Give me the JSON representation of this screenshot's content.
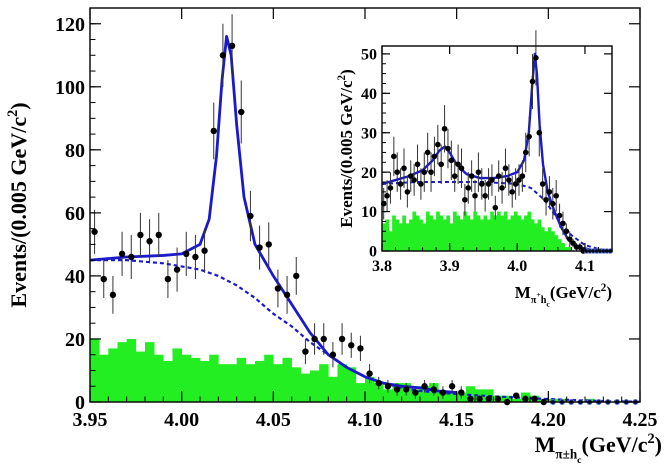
{
  "chart_data": [
    {
      "id": "main",
      "type": "scatter",
      "xlabel": "M",
      "xlabel_sub": "π±h",
      "xlabel_subsub": "c",
      "xlabel_unit": "(GeV/c",
      "xlabel_unit_sup": "2",
      "xlabel_unit_end": ")",
      "ylabel": "Events/(0.005 GeV/c",
      "ylabel_sup": "2",
      "ylabel_end": ")",
      "xlim": [
        3.95,
        4.25
      ],
      "ylim": [
        0,
        125
      ],
      "xticks": [
        3.95,
        4.0,
        4.05,
        4.1,
        4.15,
        4.2,
        4.25
      ],
      "xtick_labels": [
        "3.95",
        "4.00",
        "4.05",
        "4.10",
        "4.15",
        "4.20",
        "4.25"
      ],
      "yticks": [
        0,
        20,
        40,
        60,
        80,
        100,
        120
      ],
      "ytick_labels": [
        "0",
        "20",
        "40",
        "60",
        "80",
        "100",
        "120"
      ],
      "colors": {
        "data": "#000000",
        "fit": "#1a1acc",
        "background": "#1a1acc",
        "histogram": "#22ee22"
      },
      "data_points": [
        [
          3.9525,
          54,
          7
        ],
        [
          3.9575,
          39,
          6
        ],
        [
          3.9625,
          34,
          6
        ],
        [
          3.9675,
          47,
          7
        ],
        [
          3.9725,
          46,
          7
        ],
        [
          3.9775,
          53,
          7
        ],
        [
          3.9825,
          51,
          7
        ],
        [
          3.9875,
          53,
          7
        ],
        [
          3.9925,
          39,
          6
        ],
        [
          3.9975,
          42,
          7
        ],
        [
          4.0025,
          47,
          7
        ],
        [
          4.0075,
          46,
          7
        ],
        [
          4.0125,
          48,
          7
        ],
        [
          4.0175,
          86,
          9
        ],
        [
          4.0225,
          110,
          10
        ],
        [
          4.0275,
          113,
          10
        ],
        [
          4.0325,
          92,
          10
        ],
        [
          4.0375,
          59,
          8
        ],
        [
          4.0425,
          49,
          7
        ],
        [
          4.0475,
          50,
          7
        ],
        [
          4.0525,
          36,
          6
        ],
        [
          4.0575,
          34,
          6
        ],
        [
          4.0625,
          40,
          6
        ],
        [
          4.0675,
          16,
          4
        ],
        [
          4.0725,
          20,
          5
        ],
        [
          4.0775,
          20,
          5
        ],
        [
          4.0825,
          15,
          4
        ],
        [
          4.0875,
          20,
          5
        ],
        [
          4.0925,
          18,
          4
        ],
        [
          4.0975,
          17,
          4
        ],
        [
          4.1025,
          9,
          3
        ],
        [
          4.1075,
          6,
          2
        ],
        [
          4.1125,
          5,
          2
        ],
        [
          4.1175,
          4,
          2
        ],
        [
          4.1225,
          4,
          2
        ],
        [
          4.1275,
          3,
          2
        ],
        [
          4.1325,
          5,
          2
        ],
        [
          4.1375,
          4,
          2
        ],
        [
          4.1425,
          3,
          2
        ],
        [
          4.1475,
          5,
          2
        ],
        [
          4.1525,
          3,
          2
        ],
        [
          4.1575,
          1,
          1
        ],
        [
          4.1625,
          1,
          1
        ],
        [
          4.1675,
          1,
          1
        ],
        [
          4.1725,
          1,
          1
        ],
        [
          4.1775,
          0,
          1
        ],
        [
          4.1825,
          2,
          1
        ],
        [
          4.1875,
          1,
          1
        ],
        [
          4.1925,
          1,
          1
        ],
        [
          4.1975,
          0,
          1
        ],
        [
          4.2025,
          0,
          0
        ],
        [
          4.2075,
          0,
          0
        ],
        [
          4.2125,
          0,
          0
        ],
        [
          4.2175,
          0,
          0
        ],
        [
          4.2225,
          0,
          0
        ],
        [
          4.2275,
          0,
          0
        ],
        [
          4.2325,
          0,
          0
        ],
        [
          4.2375,
          0,
          0
        ],
        [
          4.2425,
          0,
          0
        ],
        [
          4.2475,
          0,
          0
        ]
      ],
      "fit_curve": [
        [
          3.95,
          45
        ],
        [
          3.97,
          46
        ],
        [
          3.99,
          46.5
        ],
        [
          4.0,
          47
        ],
        [
          4.01,
          50
        ],
        [
          4.015,
          58
        ],
        [
          4.019,
          78
        ],
        [
          4.022,
          102
        ],
        [
          4.0245,
          116
        ],
        [
          4.027,
          110
        ],
        [
          4.03,
          88
        ],
        [
          4.034,
          65
        ],
        [
          4.04,
          50
        ],
        [
          4.05,
          40
        ],
        [
          4.06,
          31
        ],
        [
          4.07,
          22
        ],
        [
          4.08,
          15
        ],
        [
          4.09,
          11
        ],
        [
          4.1,
          8
        ],
        [
          4.11,
          6
        ],
        [
          4.12,
          5
        ],
        [
          4.13,
          4.5
        ],
        [
          4.14,
          3.5
        ],
        [
          4.15,
          3
        ]
      ],
      "background_curve": [
        [
          3.95,
          45
        ],
        [
          3.97,
          45
        ],
        [
          3.99,
          44
        ],
        [
          4.0,
          43
        ],
        [
          4.01,
          42
        ],
        [
          4.02,
          40
        ],
        [
          4.03,
          37
        ],
        [
          4.04,
          33
        ],
        [
          4.05,
          28
        ],
        [
          4.06,
          24
        ],
        [
          4.07,
          19
        ],
        [
          4.08,
          15
        ],
        [
          4.09,
          11
        ],
        [
          4.1,
          8
        ],
        [
          4.11,
          6
        ],
        [
          4.12,
          4.5
        ],
        [
          4.13,
          3.5
        ],
        [
          4.15,
          2.5
        ],
        [
          4.17,
          1.8
        ],
        [
          4.19,
          1.2
        ],
        [
          4.21,
          0.7
        ],
        [
          4.23,
          0.3
        ],
        [
          4.25,
          0.1
        ]
      ],
      "histogram": {
        "bin_width": 0.005,
        "start": 3.95,
        "values": [
          20,
          15,
          17,
          19,
          20,
          16,
          19,
          15,
          13,
          17,
          15,
          14,
          13,
          15,
          12,
          12,
          14,
          12,
          13,
          15,
          12,
          14,
          11,
          9,
          10,
          12,
          8,
          12,
          11,
          6,
          8,
          6,
          4,
          6,
          6,
          4,
          5,
          6,
          3,
          3,
          3,
          5,
          4,
          4,
          2,
          2,
          1,
          3,
          2,
          1,
          1,
          1,
          0,
          0,
          1,
          0,
          0,
          0,
          0,
          0
        ]
      }
    },
    {
      "id": "inset",
      "type": "scatter",
      "xlabel": "M",
      "xlabel_sub": "π",
      "xlabel_sub_sup": "+",
      "xlabel_subsub": "h",
      "xlabel_subsubsub": "c",
      "xlabel_unit": "(GeV/c",
      "xlabel_unit_sup": "2",
      "xlabel_unit_end": ")",
      "ylabel": "Events/(0.005 GeV/c",
      "ylabel_sup": "2",
      "ylabel_end": ")",
      "xlim": [
        3.8,
        4.14
      ],
      "ylim": [
        0,
        52
      ],
      "xticks": [
        3.8,
        3.9,
        4.0,
        4.1
      ],
      "xtick_labels": [
        "3.8",
        "3.9",
        "4.0",
        "4.1"
      ],
      "yticks": [
        0,
        10,
        20,
        30,
        40,
        50
      ],
      "ytick_labels": [
        "0",
        "10",
        "20",
        "30",
        "40",
        "50"
      ],
      "colors": {
        "data": "#000000",
        "fit": "#1a1acc",
        "background": "#1a1acc",
        "histogram": "#22ee22"
      },
      "data_points": [
        [
          3.8025,
          12,
          4
        ],
        [
          3.8075,
          14,
          4
        ],
        [
          3.8125,
          16,
          4
        ],
        [
          3.8175,
          24,
          5
        ],
        [
          3.8225,
          20,
          5
        ],
        [
          3.8275,
          17,
          4
        ],
        [
          3.8325,
          21,
          5
        ],
        [
          3.8375,
          15,
          4
        ],
        [
          3.8425,
          19,
          4
        ],
        [
          3.8475,
          18,
          4
        ],
        [
          3.8525,
          22,
          5
        ],
        [
          3.8575,
          17,
          4
        ],
        [
          3.8625,
          20,
          5
        ],
        [
          3.8675,
          25,
          5
        ],
        [
          3.8725,
          20,
          5
        ],
        [
          3.8775,
          24,
          5
        ],
        [
          3.8825,
          27,
          5
        ],
        [
          3.8875,
          22,
          5
        ],
        [
          3.8925,
          31,
          6
        ],
        [
          3.8975,
          26,
          5
        ],
        [
          3.9025,
          23,
          5
        ],
        [
          3.9075,
          19,
          4
        ],
        [
          3.9125,
          22,
          5
        ],
        [
          3.9175,
          21,
          5
        ],
        [
          3.9225,
          13,
          4
        ],
        [
          3.9275,
          16,
          4
        ],
        [
          3.9325,
          19,
          4
        ],
        [
          3.9375,
          14,
          4
        ],
        [
          3.9425,
          20,
          5
        ],
        [
          3.9475,
          17,
          4
        ],
        [
          3.9525,
          14,
          4
        ],
        [
          3.9575,
          17,
          4
        ],
        [
          3.9625,
          18,
          4
        ],
        [
          3.9675,
          11,
          3
        ],
        [
          3.9725,
          19,
          4
        ],
        [
          3.9775,
          16,
          4
        ],
        [
          3.9825,
          21,
          5
        ],
        [
          3.9875,
          18,
          4
        ],
        [
          3.9925,
          15,
          4
        ],
        [
          3.9975,
          17,
          4
        ],
        [
          4.0025,
          18,
          4
        ],
        [
          4.0075,
          19,
          4
        ],
        [
          4.0125,
          25,
          5
        ],
        [
          4.0175,
          29,
          5
        ],
        [
          4.0225,
          43,
          7
        ],
        [
          4.0275,
          49,
          7
        ],
        [
          4.0325,
          30,
          6
        ],
        [
          4.0375,
          17,
          4
        ],
        [
          4.0425,
          13,
          4
        ],
        [
          4.0475,
          15,
          4
        ],
        [
          4.0525,
          12,
          4
        ],
        [
          4.0575,
          14,
          4
        ],
        [
          4.0625,
          9,
          3
        ],
        [
          4.0675,
          7,
          3
        ],
        [
          4.0725,
          5,
          2
        ],
        [
          4.0775,
          3,
          2
        ],
        [
          4.0825,
          2,
          1
        ],
        [
          4.0875,
          1,
          1
        ],
        [
          4.0925,
          1,
          1
        ],
        [
          4.0975,
          0,
          1
        ],
        [
          4.1025,
          0,
          0
        ],
        [
          4.1075,
          0,
          0
        ],
        [
          4.1125,
          0,
          0
        ],
        [
          4.1175,
          0,
          0
        ],
        [
          4.1225,
          0,
          0
        ],
        [
          4.1275,
          0,
          0
        ],
        [
          4.1325,
          0,
          0
        ],
        [
          4.1375,
          0,
          0
        ]
      ],
      "fit_curve": [
        [
          3.8,
          17
        ],
        [
          3.82,
          18
        ],
        [
          3.84,
          19
        ],
        [
          3.86,
          20.5
        ],
        [
          3.875,
          23
        ],
        [
          3.885,
          25.5
        ],
        [
          3.893,
          26.5
        ],
        [
          3.9,
          25
        ],
        [
          3.91,
          22
        ],
        [
          3.925,
          19.5
        ],
        [
          3.945,
          18.5
        ],
        [
          3.965,
          18.5
        ],
        [
          3.985,
          19
        ],
        [
          4.0,
          20
        ],
        [
          4.01,
          23
        ],
        [
          4.017,
          30
        ],
        [
          4.022,
          42
        ],
        [
          4.026,
          50
        ],
        [
          4.029,
          45
        ],
        [
          4.033,
          32
        ],
        [
          4.038,
          22
        ],
        [
          4.045,
          15
        ],
        [
          4.055,
          10
        ],
        [
          4.065,
          6
        ],
        [
          4.075,
          3
        ],
        [
          4.085,
          1.5
        ],
        [
          4.095,
          0.8
        ],
        [
          4.11,
          0.3
        ],
        [
          4.13,
          0.1
        ]
      ],
      "background_curve": [
        [
          3.8,
          17
        ],
        [
          3.85,
          17.5
        ],
        [
          3.9,
          17.5
        ],
        [
          3.95,
          17.5
        ],
        [
          4.0,
          17
        ],
        [
          4.02,
          16
        ],
        [
          4.04,
          13
        ],
        [
          4.06,
          8
        ],
        [
          4.08,
          4
        ],
        [
          4.1,
          1.5
        ],
        [
          4.12,
          0.5
        ],
        [
          4.14,
          0.1
        ]
      ],
      "histogram": {
        "bin_width": 0.005,
        "start": 3.8,
        "values": [
          7,
          8,
          5,
          9,
          8,
          7,
          9,
          7,
          8,
          10,
          9,
          8,
          7,
          10,
          9,
          8,
          10,
          9,
          8,
          9,
          7,
          10,
          9,
          8,
          10,
          9,
          8,
          10,
          9,
          8,
          9,
          8,
          10,
          9,
          10,
          9,
          10,
          8,
          9,
          10,
          9,
          8,
          9,
          10,
          8,
          7,
          8,
          6,
          5,
          6,
          5,
          4,
          3,
          2,
          1,
          1,
          0,
          0,
          0,
          0,
          0,
          0,
          0,
          0,
          0,
          0,
          0,
          0
        ]
      }
    }
  ]
}
